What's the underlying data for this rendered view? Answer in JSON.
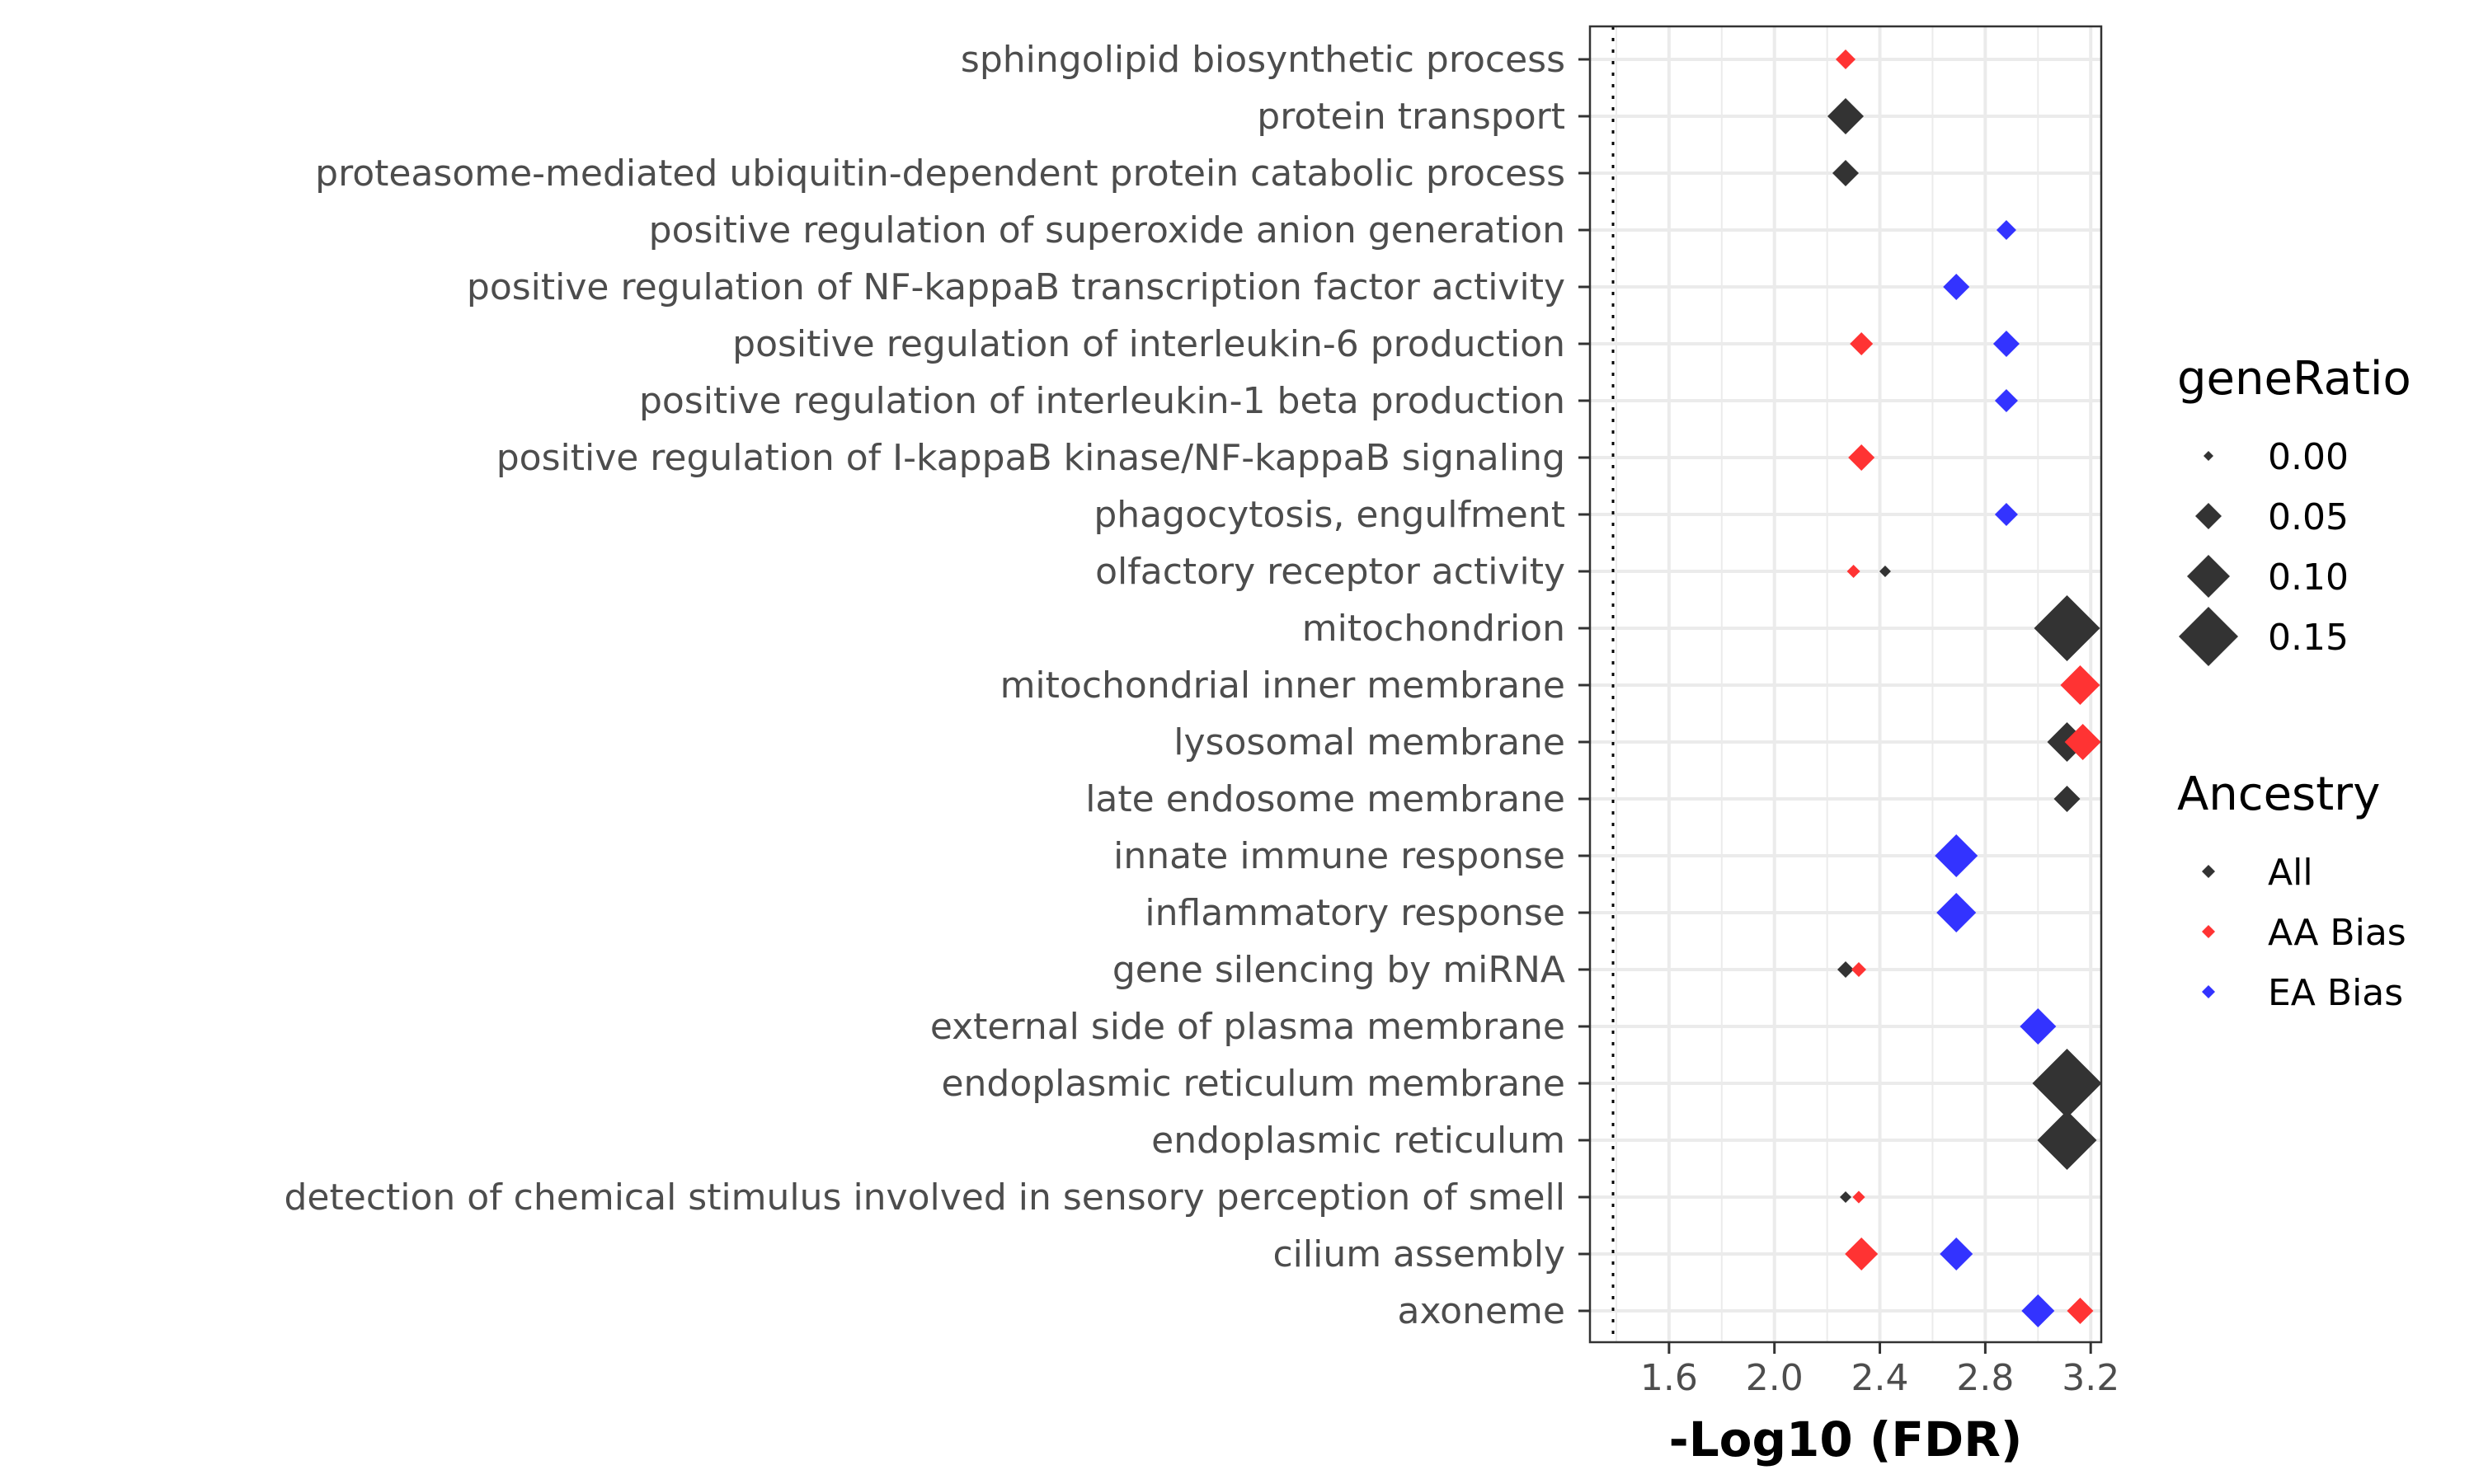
{
  "chart_data": {
    "type": "scatter",
    "xlabel": "-Log10 (FDR)",
    "xlim": [
      1.3,
      3.24
    ],
    "xticks": [
      1.6,
      2.0,
      2.4,
      2.8,
      3.2
    ],
    "xtick_labels": [
      "1.6",
      "2.0",
      "2.4",
      "2.8",
      "3.2"
    ],
    "reference_line_x": 1.3,
    "grid": true,
    "categories": [
      "sphingolipid biosynthetic process",
      "protein transport",
      "proteasome-mediated ubiquitin-dependent protein catabolic process",
      "positive regulation of superoxide anion generation",
      "positive regulation of NF-kappaB transcription factor activity",
      "positive regulation of interleukin-6 production",
      "positive regulation of interleukin-1 beta production",
      "positive regulation of I-kappaB kinase/NF-kappaB signaling",
      "phagocytosis, engulfment",
      "olfactory receptor activity",
      "mitochondrion",
      "mitochondrial inner membrane",
      "lysosomal membrane",
      "late endosome membrane",
      "innate immune response",
      "inflammatory response",
      "gene silencing by miRNA",
      "external side of plasma membrane",
      "endoplasmic reticulum membrane",
      "endoplasmic reticulum",
      "detection of chemical stimulus involved in sensory perception of smell",
      "cilium assembly",
      "axoneme"
    ],
    "points": [
      {
        "category": "sphingolipid biosynthetic process",
        "ancestry": "AA Bias",
        "x": 2.27,
        "geneRatio": 0.03
      },
      {
        "category": "protein transport",
        "ancestry": "All",
        "x": 2.27,
        "geneRatio": 0.08
      },
      {
        "category": "proteasome-mediated ubiquitin-dependent protein catabolic process",
        "ancestry": "All",
        "x": 2.27,
        "geneRatio": 0.05
      },
      {
        "category": "positive regulation of superoxide anion generation",
        "ancestry": "EA Bias",
        "x": 2.88,
        "geneRatio": 0.03
      },
      {
        "category": "positive regulation of NF-kappaB transcription factor activity",
        "ancestry": "EA Bias",
        "x": 2.69,
        "geneRatio": 0.05
      },
      {
        "category": "positive regulation of interleukin-6 production",
        "ancestry": "AA Bias",
        "x": 2.33,
        "geneRatio": 0.04
      },
      {
        "category": "positive regulation of interleukin-6 production",
        "ancestry": "EA Bias",
        "x": 2.88,
        "geneRatio": 0.05
      },
      {
        "category": "positive regulation of interleukin-1 beta production",
        "ancestry": "EA Bias",
        "x": 2.88,
        "geneRatio": 0.04
      },
      {
        "category": "positive regulation of I-kappaB kinase/NF-kappaB signaling",
        "ancestry": "AA Bias",
        "x": 2.33,
        "geneRatio": 0.05
      },
      {
        "category": "phagocytosis, engulfment",
        "ancestry": "EA Bias",
        "x": 2.88,
        "geneRatio": 0.04
      },
      {
        "category": "olfactory receptor activity",
        "ancestry": "AA Bias",
        "x": 2.3,
        "geneRatio": 0.01
      },
      {
        "category": "olfactory receptor activity",
        "ancestry": "All",
        "x": 2.42,
        "geneRatio": 0.005
      },
      {
        "category": "mitochondrion",
        "ancestry": "All",
        "x": 3.11,
        "geneRatio": 0.17
      },
      {
        "category": "mitochondrial inner membrane",
        "ancestry": "AA Bias",
        "x": 3.16,
        "geneRatio": 0.09
      },
      {
        "category": "lysosomal membrane",
        "ancestry": "All",
        "x": 3.11,
        "geneRatio": 0.09
      },
      {
        "category": "lysosomal membrane",
        "ancestry": "AA Bias",
        "x": 3.17,
        "geneRatio": 0.08
      },
      {
        "category": "late endosome membrane",
        "ancestry": "All",
        "x": 3.11,
        "geneRatio": 0.05
      },
      {
        "category": "innate immune response",
        "ancestry": "EA Bias",
        "x": 2.69,
        "geneRatio": 0.1
      },
      {
        "category": "inflammatory response",
        "ancestry": "EA Bias",
        "x": 2.69,
        "geneRatio": 0.09
      },
      {
        "category": "gene silencing by miRNA",
        "ancestry": "All",
        "x": 2.27,
        "geneRatio": 0.02
      },
      {
        "category": "gene silencing by miRNA",
        "ancestry": "AA Bias",
        "x": 2.32,
        "geneRatio": 0.015
      },
      {
        "category": "external side of plasma membrane",
        "ancestry": "EA Bias",
        "x": 3.0,
        "geneRatio": 0.08
      },
      {
        "category": "endoplasmic reticulum membrane",
        "ancestry": "All",
        "x": 3.11,
        "geneRatio": 0.18
      },
      {
        "category": "endoplasmic reticulum",
        "ancestry": "All",
        "x": 3.11,
        "geneRatio": 0.15
      },
      {
        "category": "detection of chemical stimulus involved in sensory perception of smell",
        "ancestry": "All",
        "x": 2.27,
        "geneRatio": 0.005
      },
      {
        "category": "detection of chemical stimulus involved in sensory perception of smell",
        "ancestry": "AA Bias",
        "x": 2.32,
        "geneRatio": 0.008
      },
      {
        "category": "cilium assembly",
        "ancestry": "AA Bias",
        "x": 2.33,
        "geneRatio": 0.07
      },
      {
        "category": "cilium assembly",
        "ancestry": "EA Bias",
        "x": 2.69,
        "geneRatio": 0.07
      },
      {
        "category": "axoneme",
        "ancestry": "EA Bias",
        "x": 3.0,
        "geneRatio": 0.07
      },
      {
        "category": "axoneme",
        "ancestry": "AA Bias",
        "x": 3.16,
        "geneRatio": 0.05
      }
    ],
    "legend_size": {
      "title": "geneRatio",
      "placement": "right",
      "values": [
        0.0,
        0.05,
        0.1,
        0.15
      ],
      "labels": [
        "0.00",
        "0.05",
        "0.10",
        "0.15"
      ]
    },
    "legend_color": {
      "title": "Ancestry",
      "placement": "right",
      "entries": [
        {
          "name": "All",
          "color": "#333333"
        },
        {
          "name": "AA Bias",
          "color": "#ff3333"
        },
        {
          "name": "EA Bias",
          "color": "#3333ff"
        }
      ]
    }
  }
}
